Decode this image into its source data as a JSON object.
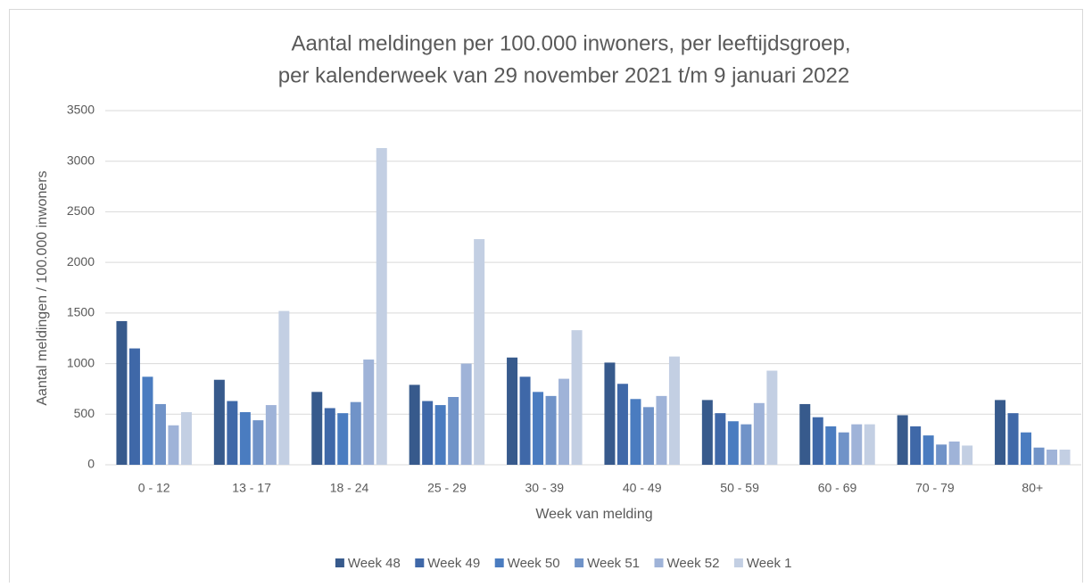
{
  "chart_data": {
    "type": "bar",
    "title": "Aantal meldingen per 100.000 inwoners, per leeftijdsgroep,",
    "subtitle": "per kalenderweek van 29 november 2021 t/m 9 januari 2022",
    "x_label": "Week van melding",
    "y_label": "Aantal meldingen / 100.000 inwoners",
    "categories": [
      "0 - 12",
      "13 - 17",
      "18 - 24",
      "25 - 29",
      "30 - 39",
      "40 - 49",
      "50 - 59",
      "60 - 69",
      "70 - 79",
      "80+"
    ],
    "series": [
      {
        "name": "Week 48",
        "color": "#375a8c",
        "values": [
          1420,
          840,
          720,
          790,
          1060,
          1010,
          640,
          600,
          490,
          640
        ]
      },
      {
        "name": "Week 49",
        "color": "#3f68a8",
        "values": [
          1150,
          630,
          560,
          630,
          870,
          800,
          510,
          470,
          380,
          510
        ]
      },
      {
        "name": "Week 50",
        "color": "#4a7cc0",
        "values": [
          870,
          520,
          510,
          590,
          720,
          650,
          430,
          380,
          290,
          320
        ]
      },
      {
        "name": "Week 51",
        "color": "#7093c8",
        "values": [
          600,
          440,
          620,
          670,
          680,
          570,
          400,
          320,
          200,
          170
        ]
      },
      {
        "name": "Week 52",
        "color": "#9fb3d8",
        "values": [
          390,
          590,
          1040,
          1000,
          850,
          680,
          610,
          400,
          230,
          150
        ]
      },
      {
        "name": "Week 1",
        "color": "#c3cfe3",
        "values": [
          520,
          1520,
          3130,
          2230,
          1330,
          1070,
          930,
          400,
          190,
          150
        ]
      }
    ],
    "ylim": [
      0,
      3500
    ],
    "yticks": [
      0,
      500,
      1000,
      1500,
      2000,
      2500,
      3000,
      3500
    ],
    "grid": true,
    "legend": "bottom"
  }
}
